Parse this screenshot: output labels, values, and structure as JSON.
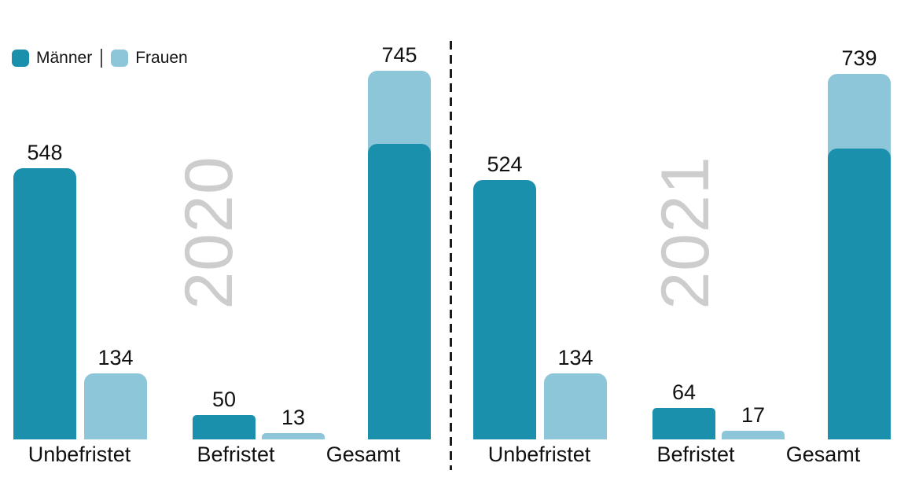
{
  "legend": {
    "items": [
      {
        "label": "Männer",
        "color": "#1b90ad"
      },
      {
        "label": "Frauen",
        "color": "#8dc6d8"
      }
    ],
    "separator": "|"
  },
  "chart_data": {
    "type": "bar",
    "title": "",
    "legend_position": "top-left",
    "grid": false,
    "axes": "none (value labels printed above bars)",
    "colors": {
      "männer": "#1b90ad",
      "frauen": "#8dc6d8",
      "watermark": "#cdcdcd",
      "label_text": "#111111"
    },
    "separator_between_groups": "vertical dashed black line",
    "groups": [
      {
        "year": "2020",
        "categories": [
          "Unbefristet",
          "Befristet",
          "Gesamt"
        ],
        "series": [
          {
            "name": "Männer",
            "values": [
              548,
              50
            ]
          },
          {
            "name": "Frauen",
            "values": [
              134,
              13
            ]
          }
        ],
        "gesamt": {
          "label": "Gesamt",
          "total": 745,
          "männer": 598,
          "frauen": 147
        }
      },
      {
        "year": "2021",
        "categories": [
          "Unbefristet",
          "Befristet",
          "Gesamt"
        ],
        "series": [
          {
            "name": "Männer",
            "values": [
              524,
              64
            ]
          },
          {
            "name": "Frauen",
            "values": [
              134,
              17
            ]
          }
        ],
        "gesamt": {
          "label": "Gesamt",
          "total": 739,
          "männer": 588,
          "frauen": 151
        }
      }
    ]
  }
}
